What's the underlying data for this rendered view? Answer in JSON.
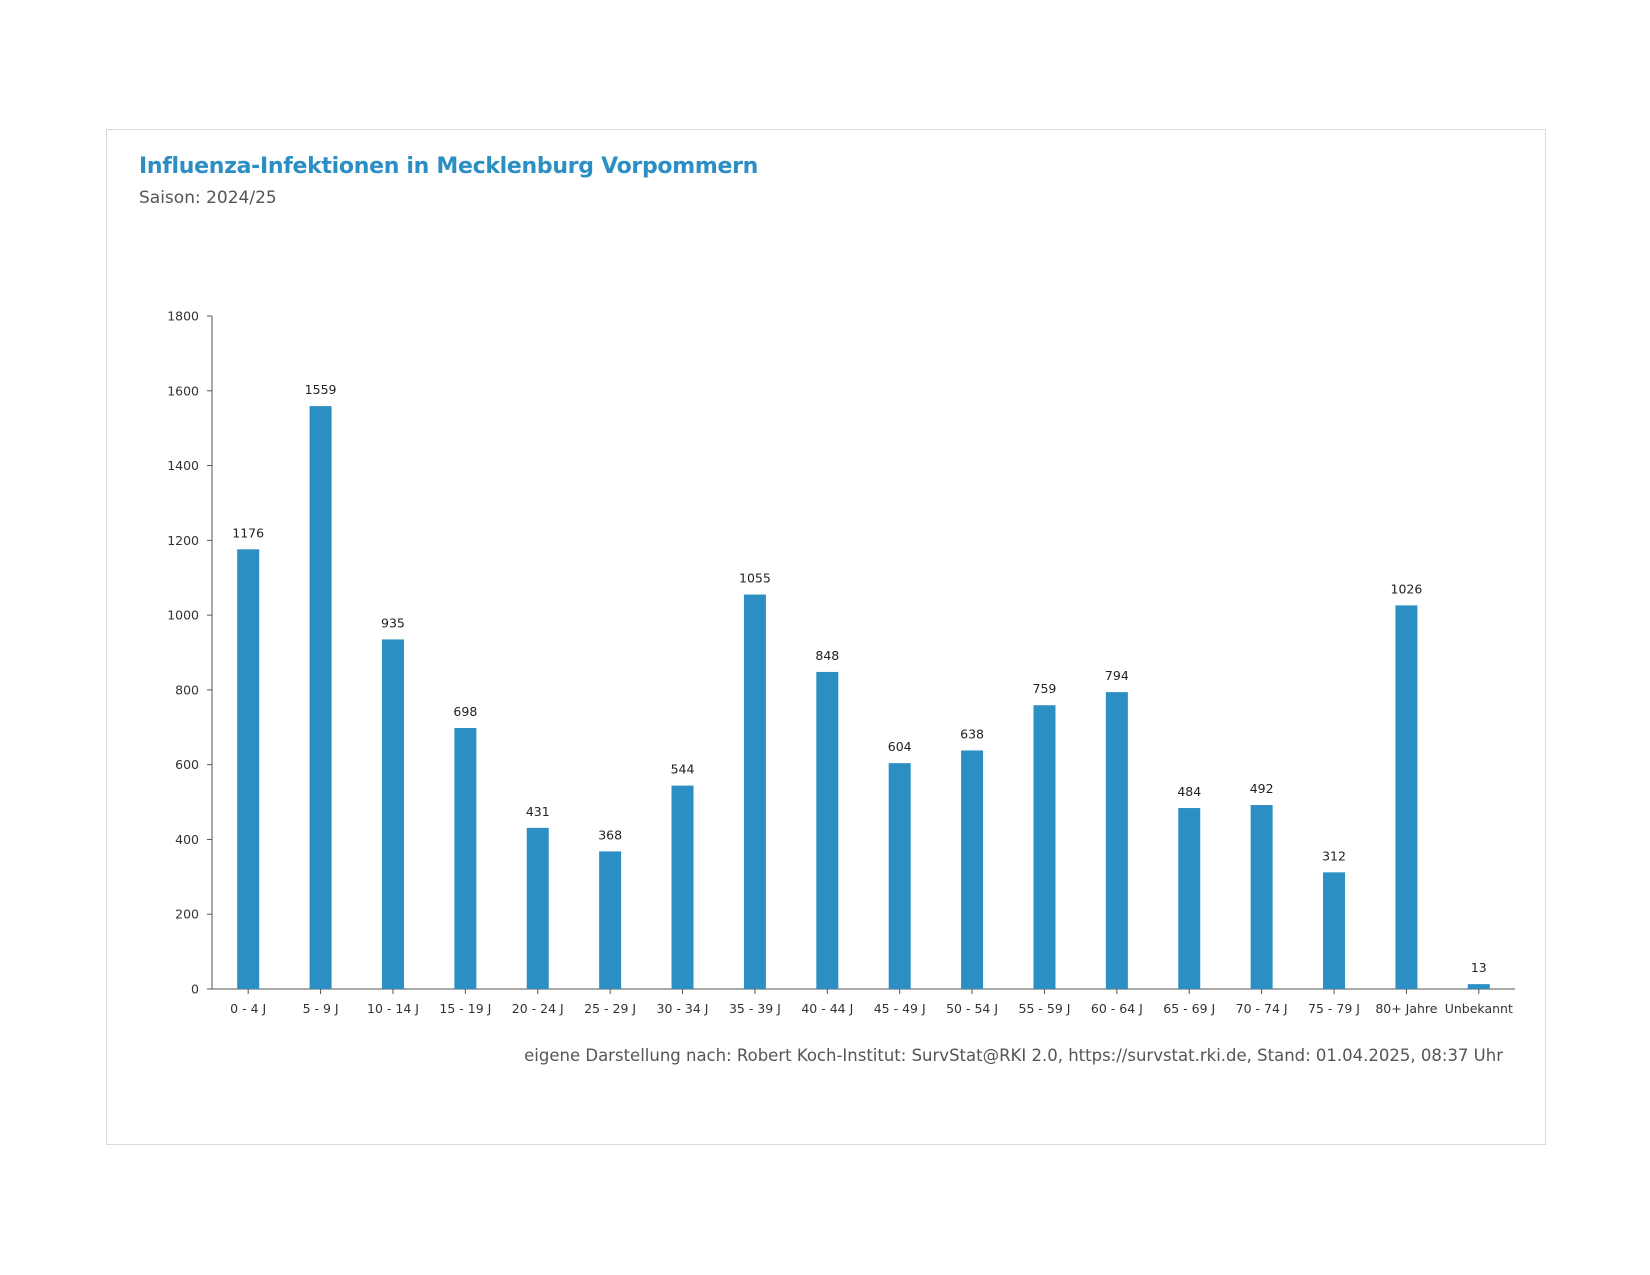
{
  "chart_data": {
    "type": "bar",
    "title": "Influenza-Infektionen in Mecklenburg Vorpommern",
    "subtitle": "Saison: 2024/25",
    "xlabel": "",
    "ylabel": "",
    "categories": [
      "0 - 4 J",
      "5 - 9 J",
      "10 - 14 J",
      "15 - 19 J",
      "20 - 24 J",
      "25 - 29 J",
      "30 - 34 J",
      "35 - 39 J",
      "40 - 44 J",
      "45 - 49 J",
      "50 - 54 J",
      "55 - 59 J",
      "60 - 64 J",
      "65 - 69 J",
      "70 - 74 J",
      "75 - 79 J",
      "80+ Jahre",
      "Unbekannt"
    ],
    "values": [
      1176,
      1559,
      935,
      698,
      431,
      368,
      544,
      1055,
      848,
      604,
      638,
      759,
      794,
      484,
      492,
      312,
      1026,
      13
    ],
    "ylim": [
      0,
      1800
    ],
    "yticks": [
      0,
      200,
      400,
      600,
      800,
      1000,
      1200,
      1400,
      1600,
      1800
    ],
    "grid": false,
    "legend": "none",
    "data_labels": true,
    "bar_color": "#2c8fc4",
    "title_color": "#2c8fc4",
    "source": "eigene Darstellung nach: Robert Koch-Institut: SurvStat@RKI 2.0, https://survstat.rki.de, Stand: 01.04.2025, 08:37 Uhr"
  }
}
